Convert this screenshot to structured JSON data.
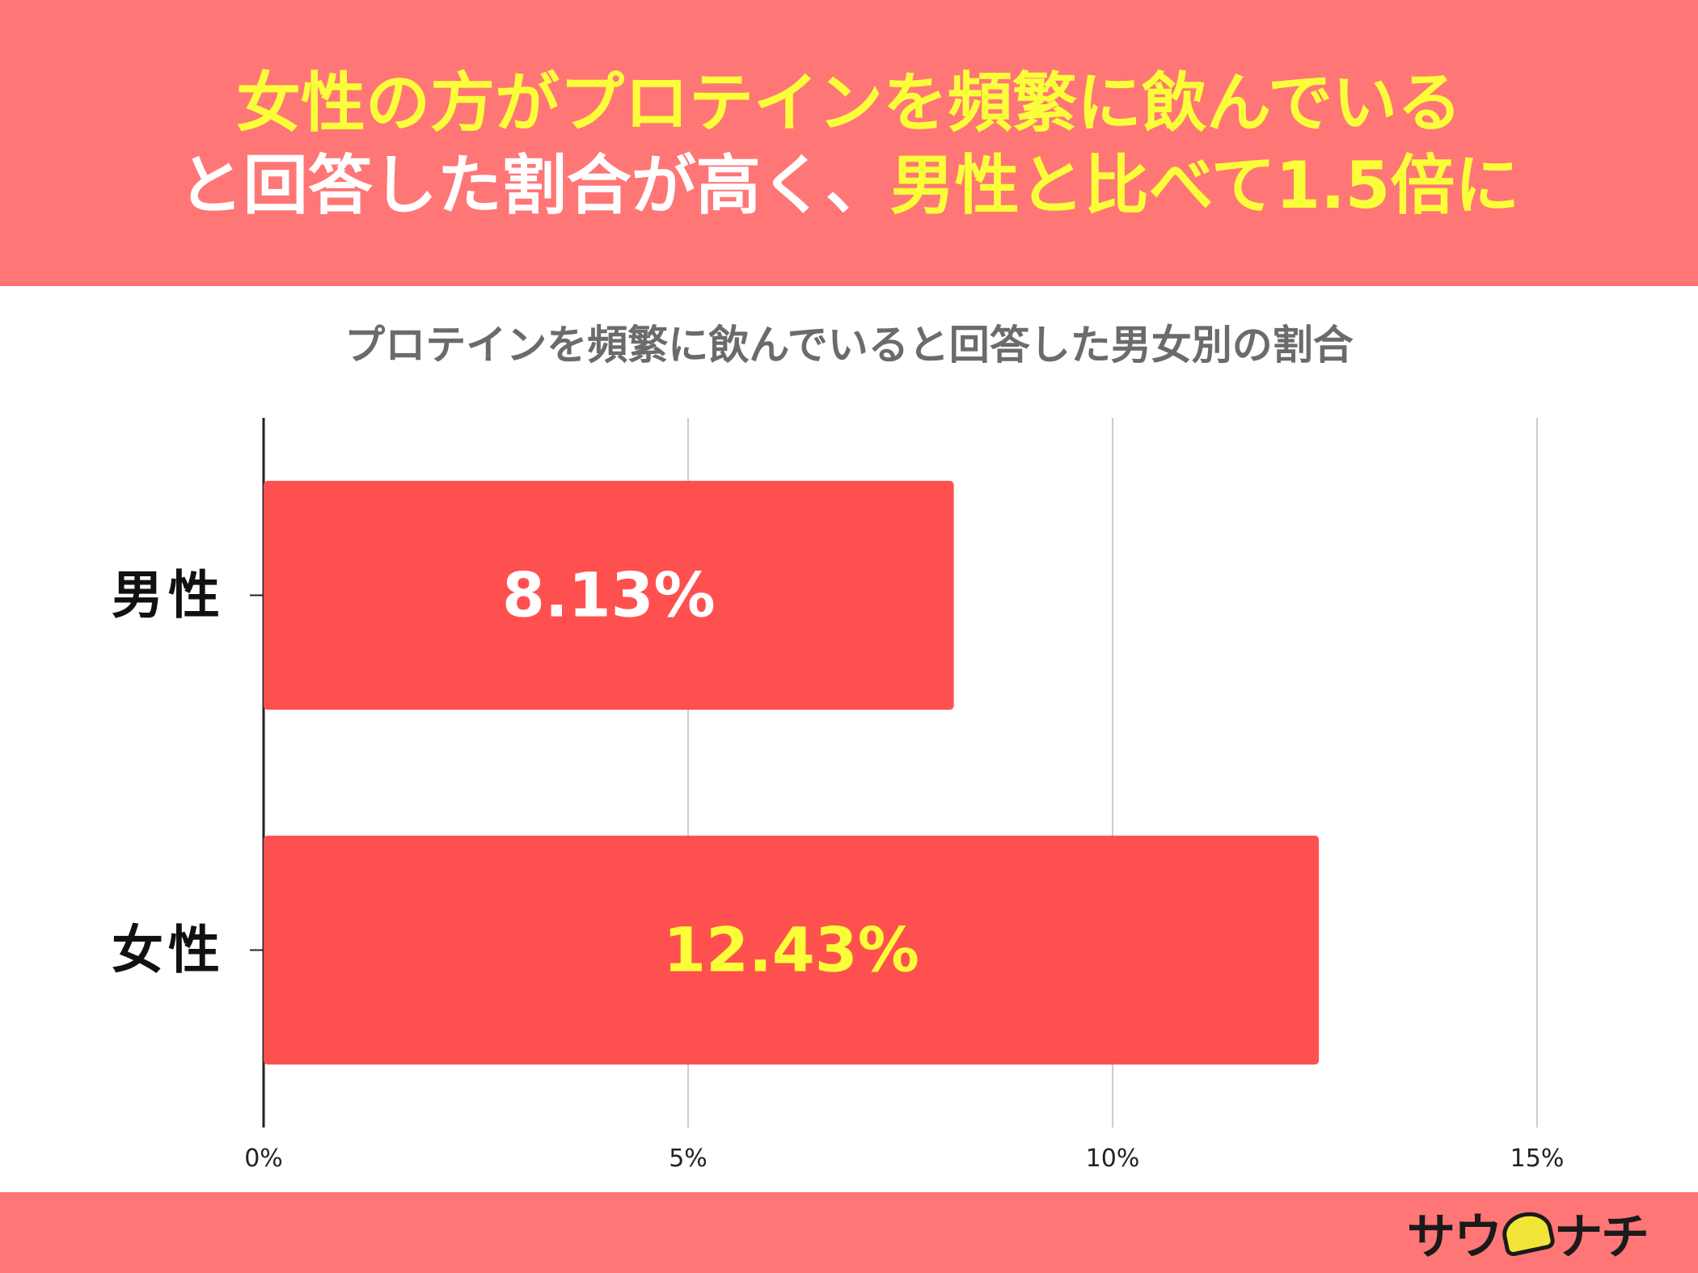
{
  "headline": {
    "line1": "女性の方がプロテインを頻繁に飲んでいる",
    "line2_white": "と回答した割合が高く、",
    "line2_yellow": "男性と比べて1.5倍に"
  },
  "brand": {
    "logo_text_left": "サウ",
    "logo_text_right": "ナチ"
  },
  "colors": {
    "header_bg": "#ff7676",
    "bar": "#ff5050",
    "highlight_yellow": "#fbff3a",
    "white": "#ffffff"
  },
  "chart_data": {
    "type": "bar",
    "orientation": "horizontal",
    "title": "プロテインを頻繁に飲んでいると回答した男女別の割合",
    "categories": [
      "男性",
      "女性"
    ],
    "values": [
      8.13,
      12.43
    ],
    "value_labels": [
      "8.13%",
      "12.43%"
    ],
    "value_label_colors": [
      "#ffffff",
      "#fbff3a"
    ],
    "xlim": [
      0,
      15
    ],
    "xticks": [
      0,
      5,
      10,
      15
    ],
    "xtick_labels": [
      "0%",
      "5%",
      "10%",
      "15%"
    ],
    "grid": true,
    "legend": "none"
  }
}
